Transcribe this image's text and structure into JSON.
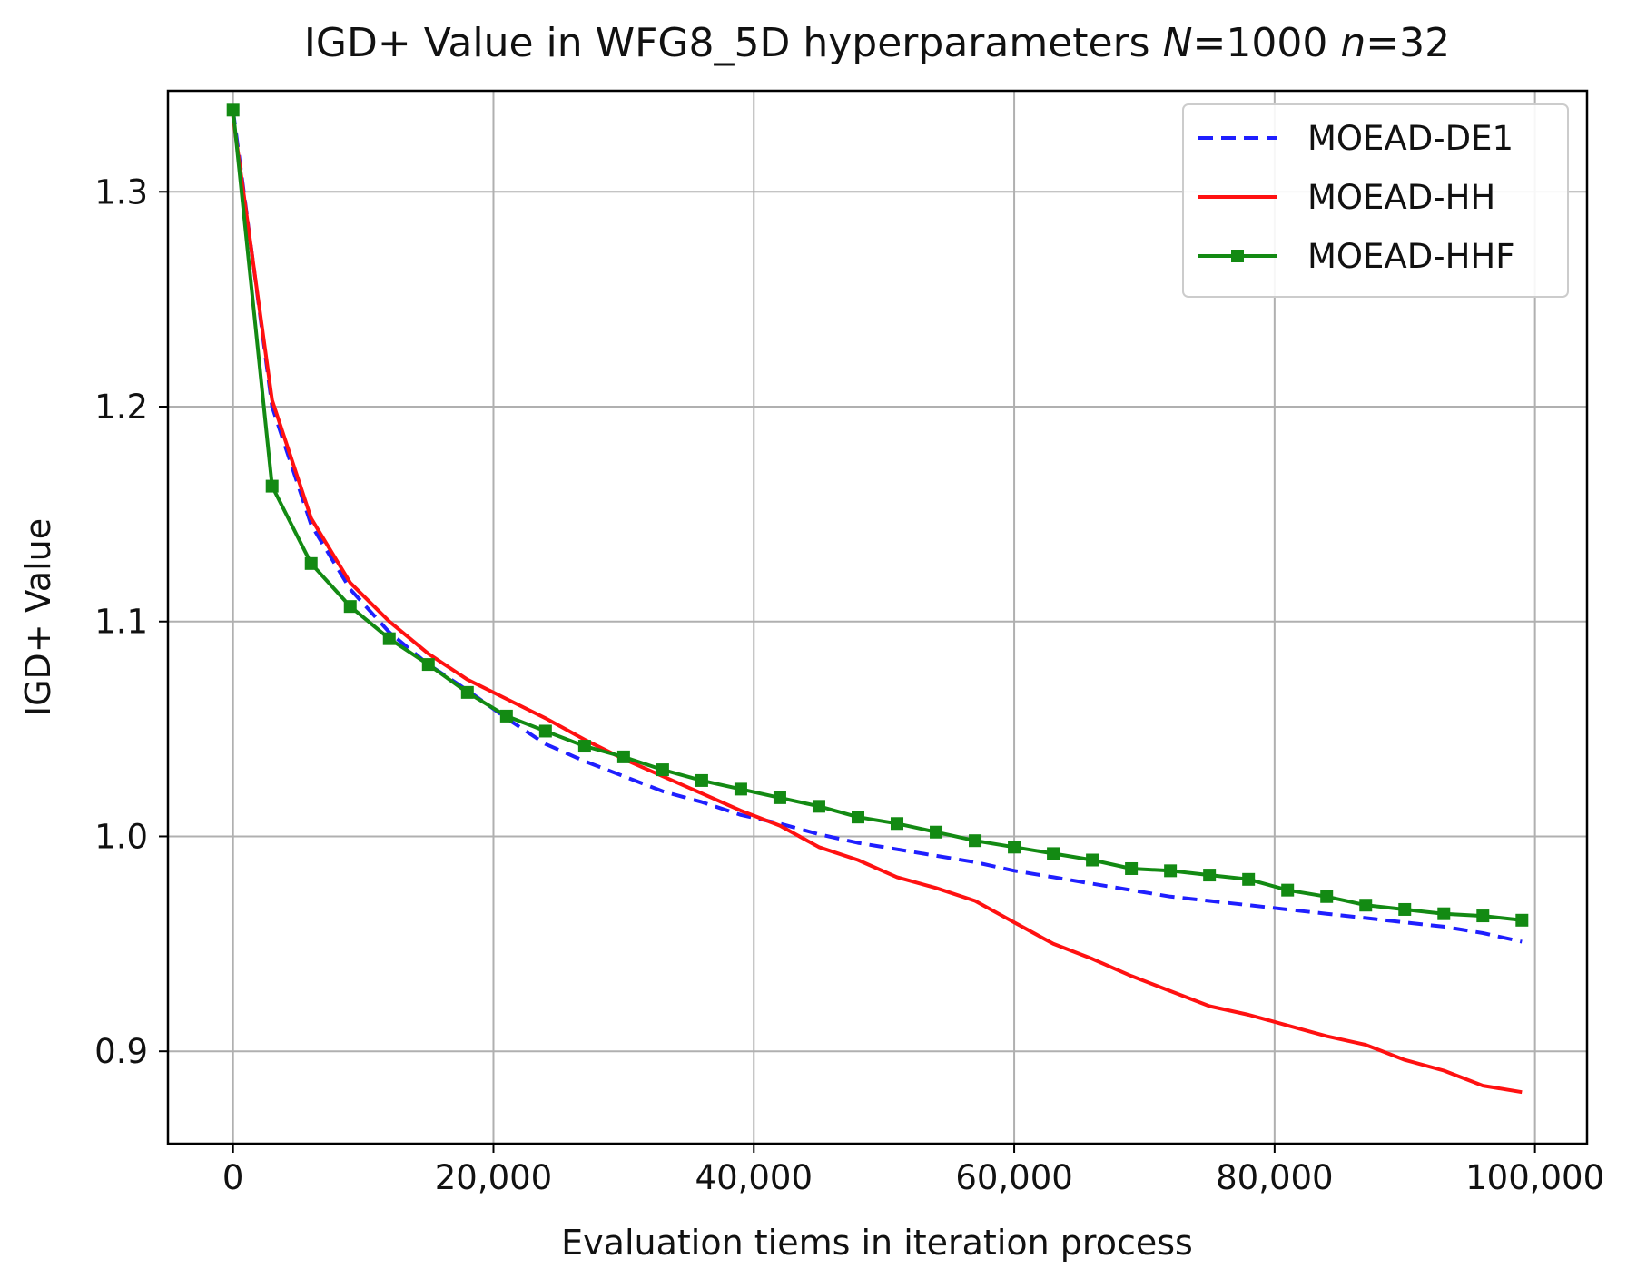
{
  "chart_data": {
    "type": "line",
    "title_prefix": "IGD+ Value in WFG8_5D hyperparameters ",
    "title_n_big_symbol": "N",
    "title_n_big_value": "=1000 ",
    "title_n_small_symbol": "n",
    "title_n_small_value": "=32",
    "xlabel": "Evaluation tiems in iteration process",
    "ylabel": "IGD+ Value",
    "xlim": [
      -5000,
      104000
    ],
    "ylim": [
      0.857,
      1.347
    ],
    "grid": true,
    "legend_position": "top-right",
    "x_ticks": [
      {
        "value": 0,
        "label": "0"
      },
      {
        "value": 20000,
        "label": "20,000"
      },
      {
        "value": 40000,
        "label": "40,000"
      },
      {
        "value": 60000,
        "label": "60,000"
      },
      {
        "value": 80000,
        "label": "80,000"
      },
      {
        "value": 100000,
        "label": "100,000"
      }
    ],
    "y_ticks": [
      {
        "value": 0.9,
        "label": "0.9"
      },
      {
        "value": 1.0,
        "label": "1.0"
      },
      {
        "value": 1.1,
        "label": "1.1"
      },
      {
        "value": 1.2,
        "label": "1.2"
      },
      {
        "value": 1.3,
        "label": "1.3"
      }
    ],
    "x": [
      0,
      3000,
      6000,
      9000,
      12000,
      15000,
      18000,
      21000,
      24000,
      27000,
      30000,
      33000,
      36000,
      39000,
      42000,
      45000,
      48000,
      51000,
      54000,
      57000,
      60000,
      63000,
      66000,
      69000,
      72000,
      75000,
      78000,
      81000,
      84000,
      87000,
      90000,
      93000,
      96000,
      99000
    ],
    "series": [
      {
        "name": "MOEAD-DE1",
        "color": "#1f1fff",
        "style": "dashed",
        "marker": "none",
        "values": [
          1.338,
          1.2,
          1.145,
          1.115,
          1.095,
          1.08,
          1.068,
          1.055,
          1.043,
          1.035,
          1.028,
          1.021,
          1.016,
          1.01,
          1.006,
          1.001,
          0.997,
          0.994,
          0.991,
          0.988,
          0.984,
          0.981,
          0.978,
          0.975,
          0.972,
          0.97,
          0.968,
          0.966,
          0.964,
          0.962,
          0.96,
          0.958,
          0.955,
          0.951
        ]
      },
      {
        "name": "MOEAD-HH",
        "color": "#ff1111",
        "style": "solid",
        "marker": "none",
        "values": [
          1.335,
          1.203,
          1.148,
          1.118,
          1.1,
          1.085,
          1.073,
          1.064,
          1.055,
          1.045,
          1.036,
          1.028,
          1.02,
          1.012,
          1.005,
          0.995,
          0.989,
          0.981,
          0.976,
          0.97,
          0.96,
          0.95,
          0.943,
          0.935,
          0.928,
          0.921,
          0.917,
          0.912,
          0.907,
          0.903,
          0.896,
          0.891,
          0.884,
          0.881
        ]
      },
      {
        "name": "MOEAD-HHF",
        "color": "#138a13",
        "style": "solid",
        "marker": "square",
        "values": [
          1.338,
          1.163,
          1.127,
          1.107,
          1.092,
          1.08,
          1.067,
          1.056,
          1.049,
          1.042,
          1.037,
          1.031,
          1.026,
          1.022,
          1.018,
          1.014,
          1.009,
          1.006,
          1.002,
          0.998,
          0.995,
          0.992,
          0.989,
          0.985,
          0.984,
          0.982,
          0.98,
          0.975,
          0.972,
          0.968,
          0.966,
          0.964,
          0.963,
          0.961
        ]
      }
    ]
  }
}
